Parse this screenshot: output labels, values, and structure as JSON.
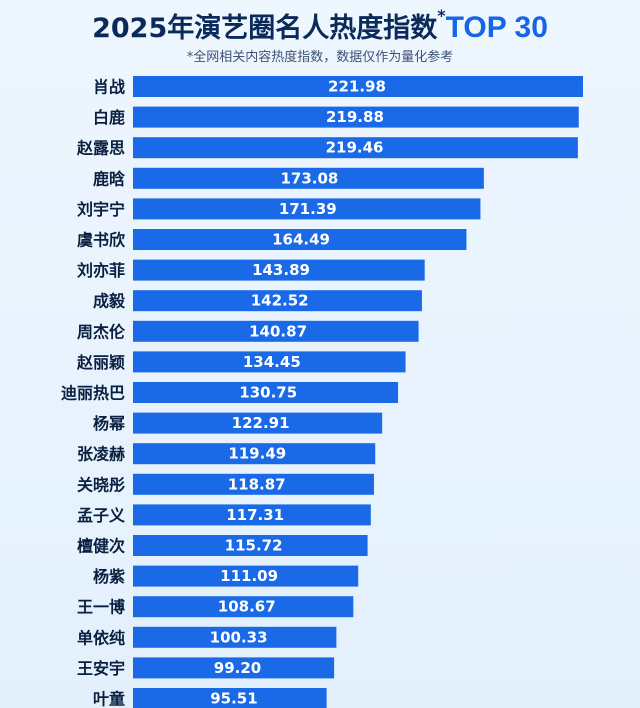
{
  "header": {
    "title_main": "2025年演艺圈名人热度指数",
    "title_star": "*",
    "title_accent": "TOP 30",
    "subtitle": "*全网相关内容热度指数，数据仅作为量化参考"
  },
  "colors": {
    "bar": "#1a6ae8",
    "title": "#0a2a5c",
    "accent": "#1565e6",
    "background": "#e8f3fd"
  },
  "chart_data": {
    "type": "bar",
    "orientation": "horizontal",
    "title": "2025年演艺圈名人热度指数 TOP 30",
    "subtitle": "*全网相关内容热度指数，数据仅作为量化参考",
    "categories": [
      "肖战",
      "白鹿",
      "赵露思",
      "鹿晗",
      "刘宇宁",
      "虞书欣",
      "刘亦菲",
      "成毅",
      "周杰伦",
      "赵丽颖",
      "迪丽热巴",
      "杨幂",
      "张凌赫",
      "关晓彤",
      "孟子义",
      "檀健次",
      "杨紫",
      "王一博",
      "单依纯",
      "王安宇",
      "叶童"
    ],
    "values": [
      221.98,
      219.88,
      219.46,
      173.08,
      171.39,
      164.49,
      143.89,
      142.52,
      140.87,
      134.45,
      130.75,
      122.91,
      119.49,
      118.87,
      117.31,
      115.72,
      111.09,
      108.67,
      100.33,
      99.2,
      95.51
    ],
    "value_labels": [
      "221.98",
      "219.88",
      "219.46",
      "173.08",
      "171.39",
      "164.49",
      "143.89",
      "142.52",
      "140.87",
      "134.45",
      "130.75",
      "122.91",
      "119.49",
      "118.87",
      "117.31",
      "115.72",
      "111.09",
      "108.67",
      "100.33",
      "99.20",
      "95.51"
    ],
    "grid": false,
    "legend": "none"
  }
}
